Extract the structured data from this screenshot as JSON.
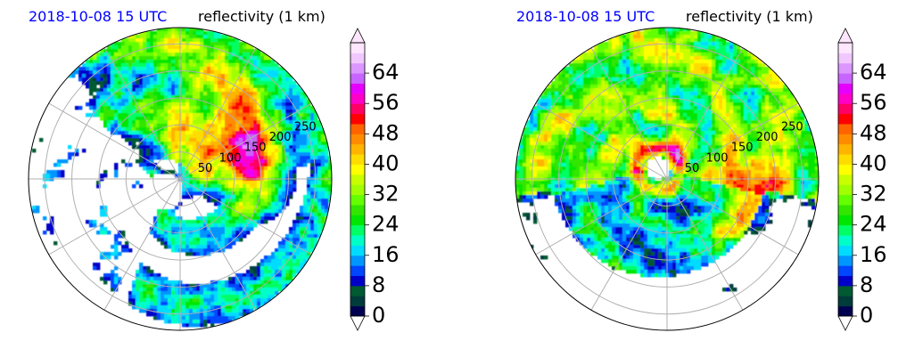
{
  "chart_data": [
    {
      "type": "heatmap",
      "projection": "polar",
      "title_left": "2018-10-08 15 UTC",
      "title_right": "reflectivity (1 km)",
      "title_left_color": "#0000ff",
      "radial_ticks": [
        50,
        100,
        150,
        200,
        250
      ],
      "radial_max": 280,
      "grid": true,
      "colorbar": {
        "levels": [
          0,
          8,
          16,
          24,
          32,
          40,
          48,
          56,
          64
        ],
        "range": [
          0,
          72
        ],
        "extend": "both",
        "colors": [
          "#000050",
          "#003c3c",
          "#005a32",
          "#0000c8",
          "#0046ff",
          "#0096ff",
          "#00dcff",
          "#00ffc8",
          "#00ff64",
          "#00e600",
          "#32e600",
          "#64ff00",
          "#a0ff00",
          "#c8ff00",
          "#ffff00",
          "#ffdc00",
          "#ffb400",
          "#ff8c00",
          "#ff6400",
          "#ff0000",
          "#ff0064",
          "#ff00c8",
          "#e600ff",
          "#c864ff",
          "#dc96ff",
          "#f0c8ff",
          "#ffe6ff"
        ]
      },
      "storm": "Left panel: broad eye near center-left with spiral rain bands; strongest echoes (40–56 dBZ) in an arc to the east/northeast between ~100 and ~250 range; scattered convective cells to the west and south."
    },
    {
      "type": "heatmap",
      "projection": "polar",
      "title_left": "2018-10-08 15 UTC",
      "title_right": "reflectivity (1 km)",
      "title_left_color": "#0000ff",
      "radial_ticks": [
        50,
        100,
        150,
        200,
        250
      ],
      "radial_max": 280,
      "grid": true,
      "colorbar": {
        "levels": [
          0,
          8,
          16,
          24,
          32,
          40,
          48,
          56,
          64
        ],
        "range": [
          0,
          72
        ],
        "extend": "both",
        "colors": [
          "#000050",
          "#003c3c",
          "#005a32",
          "#0000c8",
          "#0046ff",
          "#0096ff",
          "#00dcff",
          "#00ffc8",
          "#00ff64",
          "#00e600",
          "#32e600",
          "#64ff00",
          "#a0ff00",
          "#c8ff00",
          "#ffff00",
          "#ffdc00",
          "#ffb400",
          "#ff8c00",
          "#ff6400",
          "#ff0000",
          "#ff0064",
          "#ff00c8",
          "#e600ff",
          "#c864ff",
          "#dc96ff",
          "#f0c8ff",
          "#ffe6ff"
        ]
      },
      "storm": "Right panel: compact eye slightly south of center surrounded by a well-organized eyewall; large precipitation shield covering the northern half; intense bands (40–56 dBZ) to the east and southeast."
    }
  ]
}
